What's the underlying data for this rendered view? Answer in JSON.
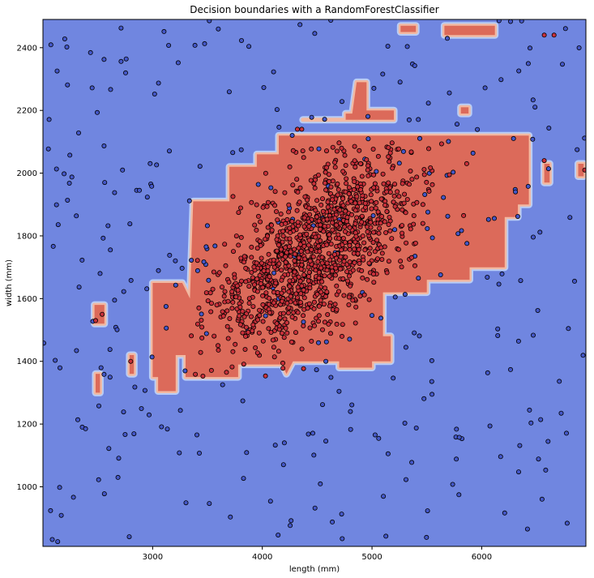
{
  "chart_data": {
    "type": "scatter",
    "title": "Decision boundaries with a RandomForestClassifier",
    "xlabel": "length (mm)",
    "ylabel": "width (mm)",
    "xlim": [
      2000,
      6950
    ],
    "ylim": [
      810,
      2490
    ],
    "xticks": [
      3000,
      4000,
      5000,
      6000
    ],
    "yticks": [
      1000,
      1200,
      1400,
      1600,
      1800,
      2000,
      2200,
      2400
    ],
    "grid": false,
    "legend": "none",
    "colors": {
      "background_class": "#7086e0",
      "region_class": "#dc6a5a",
      "edge_inner": "#f2b9a2",
      "edge_outer": "#b8cdf6",
      "point_class_0": "#4457c8",
      "point_class_1": "#c8303a",
      "point_edge": "#000000"
    },
    "decision_regions": [
      {
        "class": 1,
        "points": [
          [
            3000,
            1650
          ],
          [
            3270,
            1650
          ],
          [
            3340,
            1600
          ],
          [
            3370,
            1910
          ],
          [
            3700,
            1910
          ],
          [
            3700,
            2020
          ],
          [
            3950,
            2020
          ],
          [
            3950,
            2060
          ],
          [
            4150,
            2060
          ],
          [
            4150,
            2120
          ],
          [
            6430,
            2120
          ],
          [
            6430,
            1900
          ],
          [
            6330,
            1900
          ],
          [
            6330,
            1860
          ],
          [
            6210,
            1860
          ],
          [
            6210,
            1700
          ],
          [
            5890,
            1700
          ],
          [
            5890,
            1660
          ],
          [
            5500,
            1660
          ],
          [
            5500,
            1620
          ],
          [
            5100,
            1620
          ],
          [
            5100,
            1480
          ],
          [
            5170,
            1480
          ],
          [
            5170,
            1400
          ],
          [
            5000,
            1400
          ],
          [
            5000,
            1380
          ],
          [
            4700,
            1380
          ],
          [
            4700,
            1400
          ],
          [
            4280,
            1400
          ],
          [
            4220,
            1360
          ],
          [
            4180,
            1390
          ],
          [
            3780,
            1390
          ],
          [
            3780,
            1350
          ],
          [
            3300,
            1350
          ],
          [
            3300,
            1420
          ],
          [
            3210,
            1420
          ],
          [
            3210,
            1305
          ],
          [
            3050,
            1305
          ],
          [
            3050,
            1350
          ],
          [
            3000,
            1350
          ]
        ]
      },
      {
        "class": 1,
        "points": [
          [
            4370,
            2170
          ],
          [
            4760,
            2170
          ],
          [
            4760,
            2190
          ],
          [
            4820,
            2190
          ],
          [
            4860,
            2290
          ],
          [
            4950,
            2290
          ],
          [
            4950,
            2200
          ],
          [
            5200,
            2200
          ],
          [
            5200,
            2170
          ],
          [
            4370,
            2170
          ]
        ]
      },
      {
        "class": 1,
        "points": [
          [
            5660,
            2470
          ],
          [
            6120,
            2470
          ],
          [
            6120,
            2440
          ],
          [
            5660,
            2440
          ]
        ]
      },
      {
        "class": 1,
        "points": [
          [
            5260,
            2470
          ],
          [
            5400,
            2470
          ],
          [
            5400,
            2450
          ],
          [
            5260,
            2450
          ]
        ]
      },
      {
        "class": 1,
        "points": [
          [
            5810,
            2210
          ],
          [
            5880,
            2210
          ],
          [
            5880,
            2190
          ],
          [
            5810,
            2190
          ]
        ]
      },
      {
        "class": 1,
        "points": [
          [
            6570,
            2030
          ],
          [
            6620,
            2030
          ],
          [
            6620,
            1970
          ],
          [
            6570,
            1970
          ]
        ]
      },
      {
        "class": 1,
        "points": [
          [
            6880,
            2030
          ],
          [
            6930,
            2030
          ],
          [
            6930,
            1990
          ],
          [
            6880,
            1990
          ]
        ]
      },
      {
        "class": 1,
        "points": [
          [
            2470,
            1580
          ],
          [
            2560,
            1580
          ],
          [
            2560,
            1520
          ],
          [
            2470,
            1520
          ]
        ]
      },
      {
        "class": 1,
        "points": [
          [
            2480,
            1360
          ],
          [
            2520,
            1360
          ],
          [
            2520,
            1300
          ],
          [
            2480,
            1300
          ]
        ]
      },
      {
        "class": 1,
        "points": [
          [
            2790,
            1420
          ],
          [
            2830,
            1420
          ],
          [
            2830,
            1360
          ],
          [
            2790,
            1360
          ]
        ]
      }
    ],
    "cluster": {
      "class": 1,
      "count": 1150,
      "center": [
        4500,
        1760
      ],
      "std": [
        460,
        165
      ],
      "correlation": 0.62,
      "x_range": [
        3250,
        5950
      ],
      "y_range": [
        1340,
        2100
      ]
    },
    "outliers": {
      "class": 0,
      "count": 330,
      "x_range": [
        2000,
        6950
      ],
      "y_range": [
        820,
        2490
      ]
    },
    "red_outliers": [
      {
        "x": 2480,
        "y": 1530
      },
      {
        "x": 2540,
        "y": 1550
      },
      {
        "x": 2800,
        "y": 1400
      },
      {
        "x": 6570,
        "y": 2040
      },
      {
        "x": 6570,
        "y": 2440
      },
      {
        "x": 6660,
        "y": 2440
      },
      {
        "x": 6940,
        "y": 2010
      },
      {
        "x": 4320,
        "y": 2140
      },
      {
        "x": 4360,
        "y": 2140
      }
    ]
  }
}
